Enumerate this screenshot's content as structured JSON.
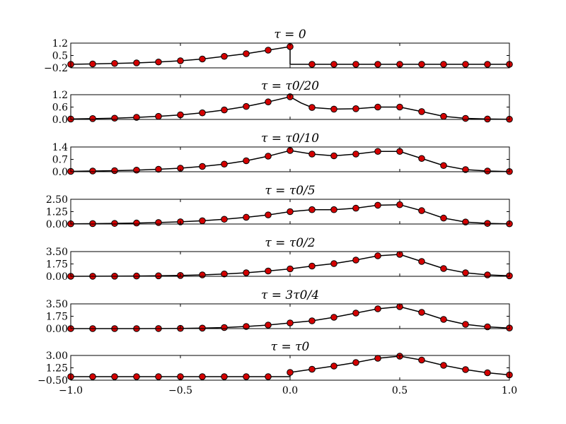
{
  "chart_data": [
    {
      "type": "line",
      "title": "τ = 0",
      "xlim": [
        -1.0,
        1.0
      ],
      "ylim": [
        -0.2,
        1.2
      ],
      "yticks": [
        -0.2,
        0.5,
        1.2
      ],
      "ytick_labels": [
        "−0.2",
        "0.5",
        "1.2"
      ],
      "series": [
        {
          "x": [
            -1.0,
            -0.9,
            -0.8,
            -0.7,
            -0.6,
            -0.5,
            -0.4,
            -0.3,
            -0.2,
            -0.1,
            0.0,
            0.0,
            0.1,
            0.2,
            0.3,
            0.4,
            0.5,
            0.6,
            0.7,
            0.8,
            0.9,
            1.0
          ],
          "y": [
            0.0,
            0.02,
            0.05,
            0.08,
            0.13,
            0.2,
            0.3,
            0.45,
            0.6,
            0.8,
            1.0,
            0.0,
            0.0,
            0.0,
            0.0,
            0.0,
            0.0,
            0.0,
            0.0,
            0.0,
            0.0,
            0.0
          ]
        }
      ],
      "markers": {
        "x": [
          -1.0,
          -0.9,
          -0.8,
          -0.7,
          -0.6,
          -0.5,
          -0.4,
          -0.3,
          -0.2,
          -0.1,
          0.0,
          0.1,
          0.2,
          0.3,
          0.4,
          0.5,
          0.6,
          0.7,
          0.8,
          0.9,
          1.0
        ],
        "y": [
          0.0,
          0.02,
          0.05,
          0.08,
          0.13,
          0.2,
          0.3,
          0.45,
          0.6,
          0.8,
          1.0,
          0.0,
          0.0,
          0.0,
          0.0,
          0.0,
          0.0,
          0.0,
          0.0,
          0.0,
          0.0
        ]
      }
    },
    {
      "type": "line",
      "title": "τ = τ0/20",
      "xlim": [
        -1.0,
        1.0
      ],
      "ylim": [
        0.0,
        1.2
      ],
      "yticks": [
        0.0,
        0.6,
        1.2
      ],
      "ytick_labels": [
        "0.0",
        "0.6",
        "1.2"
      ],
      "series": [
        {
          "x": [
            -1.0,
            -0.9,
            -0.8,
            -0.7,
            -0.6,
            -0.5,
            -0.4,
            -0.3,
            -0.2,
            -0.1,
            0.0,
            0.05,
            0.1,
            0.2,
            0.3,
            0.4,
            0.5,
            0.6,
            0.7,
            0.8,
            0.9,
            1.0
          ],
          "y": [
            0.02,
            0.04,
            0.06,
            0.1,
            0.15,
            0.22,
            0.32,
            0.46,
            0.63,
            0.85,
            1.1,
            0.8,
            0.58,
            0.5,
            0.52,
            0.6,
            0.6,
            0.38,
            0.15,
            0.05,
            0.02,
            0.01
          ]
        }
      ],
      "markers": {
        "x": [
          -1.0,
          -0.9,
          -0.8,
          -0.7,
          -0.6,
          -0.5,
          -0.4,
          -0.3,
          -0.2,
          -0.1,
          0.0,
          0.1,
          0.2,
          0.3,
          0.4,
          0.5,
          0.6,
          0.7,
          0.8,
          0.9,
          1.0
        ],
        "y": [
          0.02,
          0.04,
          0.06,
          0.1,
          0.15,
          0.22,
          0.32,
          0.46,
          0.63,
          0.85,
          1.1,
          0.58,
          0.5,
          0.52,
          0.6,
          0.6,
          0.38,
          0.15,
          0.05,
          0.02,
          0.01
        ]
      }
    },
    {
      "type": "line",
      "title": "τ = τ0/10",
      "xlim": [
        -1.0,
        1.0
      ],
      "ylim": [
        0.0,
        1.4
      ],
      "yticks": [
        0.0,
        0.7,
        1.4
      ],
      "ytick_labels": [
        "0.0",
        "0.7",
        "1.4"
      ],
      "series": [
        {
          "x": [
            -1.0,
            -0.9,
            -0.8,
            -0.7,
            -0.6,
            -0.5,
            -0.4,
            -0.3,
            -0.2,
            -0.1,
            0.0,
            0.1,
            0.2,
            0.3,
            0.4,
            0.5,
            0.6,
            0.7,
            0.8,
            0.9,
            1.0
          ],
          "y": [
            0.02,
            0.04,
            0.06,
            0.09,
            0.14,
            0.2,
            0.3,
            0.43,
            0.62,
            0.88,
            1.2,
            1.0,
            0.9,
            1.0,
            1.15,
            1.15,
            0.75,
            0.35,
            0.12,
            0.04,
            0.01
          ]
        }
      ],
      "markers": {
        "x": [
          -1.0,
          -0.9,
          -0.8,
          -0.7,
          -0.6,
          -0.5,
          -0.4,
          -0.3,
          -0.2,
          -0.1,
          0.0,
          0.1,
          0.2,
          0.3,
          0.4,
          0.5,
          0.6,
          0.7,
          0.8,
          0.9,
          1.0
        ],
        "y": [
          0.02,
          0.04,
          0.06,
          0.09,
          0.14,
          0.2,
          0.3,
          0.43,
          0.62,
          0.88,
          1.2,
          1.0,
          0.9,
          1.0,
          1.15,
          1.15,
          0.75,
          0.35,
          0.12,
          0.04,
          0.01
        ]
      }
    },
    {
      "type": "line",
      "title": "τ = τ0/5",
      "xlim": [
        -1.0,
        1.0
      ],
      "ylim": [
        0.0,
        2.5
      ],
      "yticks": [
        0.0,
        1.25,
        2.5
      ],
      "ytick_labels": [
        "0.00",
        "1.25",
        "2.50"
      ],
      "series": [
        {
          "x": [
            -1.0,
            -0.9,
            -0.8,
            -0.7,
            -0.6,
            -0.5,
            -0.4,
            -0.3,
            -0.2,
            -0.1,
            0.0,
            0.1,
            0.2,
            0.3,
            0.4,
            0.5,
            0.6,
            0.7,
            0.8,
            0.9,
            1.0
          ],
          "y": [
            0.02,
            0.04,
            0.06,
            0.1,
            0.15,
            0.22,
            0.33,
            0.48,
            0.68,
            0.92,
            1.25,
            1.45,
            1.45,
            1.6,
            1.9,
            1.95,
            1.35,
            0.6,
            0.2,
            0.06,
            0.02
          ]
        }
      ],
      "markers": {
        "x": [
          -1.0,
          -0.9,
          -0.8,
          -0.7,
          -0.6,
          -0.5,
          -0.4,
          -0.3,
          -0.2,
          -0.1,
          0.0,
          0.1,
          0.2,
          0.3,
          0.4,
          0.5,
          0.6,
          0.7,
          0.8,
          0.9,
          1.0
        ],
        "y": [
          0.02,
          0.04,
          0.06,
          0.1,
          0.15,
          0.22,
          0.33,
          0.48,
          0.68,
          0.92,
          1.25,
          1.45,
          1.45,
          1.6,
          1.9,
          1.95,
          1.35,
          0.6,
          0.2,
          0.06,
          0.02
        ]
      }
    },
    {
      "type": "line",
      "title": "τ = τ0/2",
      "xlim": [
        -1.0,
        1.0
      ],
      "ylim": [
        0.0,
        3.5
      ],
      "yticks": [
        0.0,
        1.75,
        3.5
      ],
      "ytick_labels": [
        "0.00",
        "1.75",
        "3.50"
      ],
      "series": [
        {
          "x": [
            -1.0,
            -0.9,
            -0.8,
            -0.7,
            -0.6,
            -0.5,
            -0.4,
            -0.3,
            -0.2,
            -0.1,
            0.0,
            0.1,
            0.2,
            0.3,
            0.4,
            0.5,
            0.6,
            0.7,
            0.8,
            0.9,
            1.0
          ],
          "y": [
            0.0,
            0.01,
            0.02,
            0.04,
            0.07,
            0.12,
            0.2,
            0.33,
            0.5,
            0.75,
            1.05,
            1.45,
            1.8,
            2.3,
            2.9,
            3.1,
            2.1,
            1.1,
            0.5,
            0.2,
            0.07
          ]
        }
      ],
      "markers": {
        "x": [
          -1.0,
          -0.9,
          -0.8,
          -0.7,
          -0.6,
          -0.5,
          -0.4,
          -0.3,
          -0.2,
          -0.1,
          0.0,
          0.1,
          0.2,
          0.3,
          0.4,
          0.5,
          0.6,
          0.7,
          0.8,
          0.9,
          1.0
        ],
        "y": [
          0.0,
          0.01,
          0.02,
          0.04,
          0.07,
          0.12,
          0.2,
          0.33,
          0.5,
          0.75,
          1.05,
          1.45,
          1.8,
          2.3,
          2.9,
          3.1,
          2.1,
          1.1,
          0.5,
          0.2,
          0.07
        ]
      }
    },
    {
      "type": "line",
      "title": "τ = 3τ0/4",
      "xlim": [
        -1.0,
        1.0
      ],
      "ylim": [
        0.0,
        3.5
      ],
      "yticks": [
        0.0,
        1.75,
        3.5
      ],
      "ytick_labels": [
        "0.00",
        "1.75",
        "3.50"
      ],
      "series": [
        {
          "x": [
            -1.0,
            -0.9,
            -0.8,
            -0.7,
            -0.6,
            -0.5,
            -0.4,
            -0.3,
            -0.2,
            -0.1,
            0.0,
            0.1,
            0.2,
            0.3,
            0.4,
            0.5,
            0.6,
            0.7,
            0.8,
            0.9,
            1.0
          ],
          "y": [
            0.0,
            0.0,
            0.0,
            0.0,
            0.01,
            0.03,
            0.07,
            0.15,
            0.3,
            0.5,
            0.8,
            1.1,
            1.6,
            2.2,
            2.8,
            3.1,
            2.3,
            1.3,
            0.6,
            0.25,
            0.08
          ]
        }
      ],
      "markers": {
        "x": [
          -1.0,
          -0.9,
          -0.8,
          -0.7,
          -0.6,
          -0.5,
          -0.4,
          -0.3,
          -0.2,
          -0.1,
          0.0,
          0.1,
          0.2,
          0.3,
          0.4,
          0.5,
          0.6,
          0.7,
          0.8,
          0.9,
          1.0
        ],
        "y": [
          0.0,
          0.0,
          0.0,
          0.0,
          0.01,
          0.03,
          0.07,
          0.15,
          0.3,
          0.5,
          0.8,
          1.1,
          1.6,
          2.2,
          2.8,
          3.1,
          2.3,
          1.3,
          0.6,
          0.25,
          0.08
        ]
      }
    },
    {
      "type": "line",
      "title": "τ = τ0",
      "xlim": [
        -1.0,
        1.0
      ],
      "ylim": [
        -0.5,
        3.0
      ],
      "yticks": [
        -0.5,
        1.25,
        3.0
      ],
      "ytick_labels": [
        "−0.50",
        "1.25",
        "3.00"
      ],
      "xticks": [
        -1.0,
        -0.5,
        0.0,
        0.5,
        1.0
      ],
      "xtick_labels": [
        "−1.0",
        "−0.5",
        "0.0",
        "0.5",
        "1.0"
      ],
      "series": [
        {
          "x": [
            -1.0,
            -0.9,
            -0.8,
            -0.7,
            -0.6,
            -0.5,
            -0.4,
            -0.3,
            -0.2,
            -0.1,
            0.0,
            0.0,
            0.1,
            0.2,
            0.3,
            0.4,
            0.5,
            0.6,
            0.7,
            0.8,
            0.9,
            1.0
          ],
          "y": [
            0.0,
            0.0,
            0.0,
            0.0,
            0.0,
            0.0,
            0.0,
            0.0,
            0.0,
            0.0,
            0.0,
            0.6,
            1.05,
            1.5,
            2.0,
            2.6,
            2.9,
            2.35,
            1.6,
            1.0,
            0.55,
            0.25
          ]
        }
      ],
      "markers": {
        "x": [
          -1.0,
          -0.9,
          -0.8,
          -0.7,
          -0.6,
          -0.5,
          -0.4,
          -0.3,
          -0.2,
          -0.1,
          0.0,
          0.1,
          0.2,
          0.3,
          0.4,
          0.5,
          0.6,
          0.7,
          0.8,
          0.9,
          1.0
        ],
        "y": [
          0.0,
          0.0,
          0.0,
          0.0,
          0.0,
          0.0,
          0.0,
          0.0,
          0.0,
          0.0,
          0.6,
          1.05,
          1.5,
          2.0,
          2.6,
          2.9,
          2.35,
          1.6,
          1.0,
          0.55,
          0.25
        ]
      }
    }
  ],
  "colors": {
    "marker_fill": "#d40000",
    "line": "#000000"
  }
}
